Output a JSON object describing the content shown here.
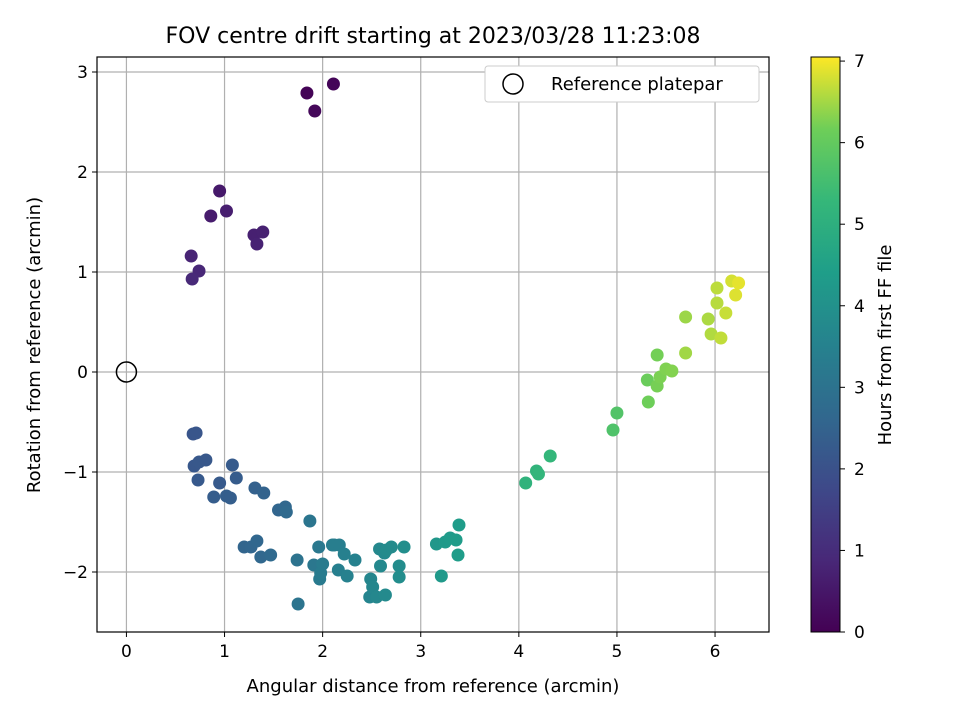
{
  "chart_data": {
    "type": "scatter",
    "title": "FOV centre drift starting at 2023/03/28 11:23:08",
    "xlabel": "Angular distance from reference (arcmin)",
    "ylabel": "Rotation from reference (arcmin)",
    "xlim": [
      -0.3,
      6.55
    ],
    "ylim": [
      -2.6,
      3.15
    ],
    "xticks": [
      0,
      1,
      2,
      3,
      4,
      5,
      6
    ],
    "yticks": [
      -2,
      -1,
      0,
      1,
      2,
      3
    ],
    "grid": true,
    "legend": {
      "position": "top-right",
      "entries": [
        "Reference platepar"
      ]
    },
    "reference": {
      "x": 0,
      "y": 0
    },
    "colorbar": {
      "label": "Hours from first FF file",
      "range": [
        0,
        7.05
      ],
      "ticks": [
        0,
        1,
        2,
        3,
        4,
        5,
        6,
        7
      ],
      "colormap": "viridis"
    },
    "points": [
      [
        1.84,
        2.79,
        0.05
      ],
      [
        2.11,
        2.88,
        0.1
      ],
      [
        1.92,
        2.61,
        0.15
      ],
      [
        0.95,
        1.81,
        0.55
      ],
      [
        0.86,
        1.56,
        0.6
      ],
      [
        1.02,
        1.61,
        0.65
      ],
      [
        1.3,
        1.37,
        0.7
      ],
      [
        1.39,
        1.4,
        0.72
      ],
      [
        1.33,
        1.28,
        0.75
      ],
      [
        0.66,
        1.16,
        0.8
      ],
      [
        0.74,
        1.01,
        0.85
      ],
      [
        0.67,
        0.93,
        0.9
      ],
      [
        0.68,
        -0.62,
        2.1
      ],
      [
        0.71,
        -0.61,
        2.12
      ],
      [
        0.69,
        -0.94,
        2.15
      ],
      [
        0.74,
        -0.9,
        2.18
      ],
      [
        0.81,
        -0.88,
        2.2
      ],
      [
        0.73,
        -1.08,
        2.22
      ],
      [
        0.95,
        -1.11,
        2.25
      ],
      [
        1.08,
        -0.93,
        2.27
      ],
      [
        1.12,
        -1.06,
        2.3
      ],
      [
        0.89,
        -1.25,
        2.32
      ],
      [
        1.02,
        -1.24,
        2.35
      ],
      [
        1.06,
        -1.26,
        2.37
      ],
      [
        1.31,
        -1.16,
        2.45
      ],
      [
        1.4,
        -1.21,
        2.5
      ],
      [
        1.55,
        -1.38,
        2.6
      ],
      [
        1.62,
        -1.35,
        2.65
      ],
      [
        1.63,
        -1.4,
        2.7
      ],
      [
        1.2,
        -1.75,
        2.55
      ],
      [
        1.27,
        -1.75,
        2.58
      ],
      [
        1.33,
        -1.69,
        2.62
      ],
      [
        1.37,
        -1.85,
        2.66
      ],
      [
        1.47,
        -1.83,
        2.7
      ],
      [
        1.74,
        -1.88,
        3.0
      ],
      [
        1.75,
        -2.32,
        3.05
      ],
      [
        1.87,
        -1.49,
        3.1
      ],
      [
        1.91,
        -1.93,
        3.15
      ],
      [
        1.96,
        -1.75,
        3.2
      ],
      [
        1.97,
        -2.07,
        3.25
      ],
      [
        1.98,
        -2.01,
        3.28
      ],
      [
        2.0,
        -1.92,
        3.3
      ],
      [
        2.1,
        -1.73,
        3.35
      ],
      [
        2.12,
        -1.73,
        3.38
      ],
      [
        2.17,
        -1.73,
        3.4
      ],
      [
        2.16,
        -1.98,
        3.42
      ],
      [
        2.22,
        -1.82,
        3.45
      ],
      [
        2.25,
        -2.04,
        3.48
      ],
      [
        2.33,
        -1.88,
        3.5
      ],
      [
        2.48,
        -2.25,
        3.6
      ],
      [
        2.49,
        -2.07,
        3.62
      ],
      [
        2.51,
        -2.15,
        3.65
      ],
      [
        2.55,
        -2.25,
        3.67
      ],
      [
        2.58,
        -1.77,
        3.7
      ],
      [
        2.59,
        -1.94,
        3.72
      ],
      [
        2.63,
        -1.81,
        3.75
      ],
      [
        2.64,
        -2.23,
        3.77
      ],
      [
        2.65,
        -1.78,
        3.8
      ],
      [
        2.7,
        -1.75,
        3.82
      ],
      [
        2.78,
        -1.94,
        3.85
      ],
      [
        2.78,
        -2.05,
        3.87
      ],
      [
        2.83,
        -1.75,
        3.9
      ],
      [
        3.16,
        -1.72,
        4.2
      ],
      [
        3.21,
        -2.04,
        4.25
      ],
      [
        3.25,
        -1.7,
        4.28
      ],
      [
        3.3,
        -1.66,
        4.3
      ],
      [
        3.36,
        -1.68,
        4.33
      ],
      [
        3.39,
        -1.53,
        4.35
      ],
      [
        3.38,
        -1.83,
        4.38
      ],
      [
        4.07,
        -1.11,
        5.1
      ],
      [
        4.18,
        -0.99,
        5.15
      ],
      [
        4.2,
        -1.02,
        5.2
      ],
      [
        4.32,
        -0.84,
        5.25
      ],
      [
        4.96,
        -0.58,
        5.7
      ],
      [
        5.0,
        -0.41,
        5.75
      ],
      [
        5.31,
        -0.08,
        6.1
      ],
      [
        5.32,
        -0.3,
        6.15
      ],
      [
        5.41,
        0.17,
        6.2
      ],
      [
        5.41,
        -0.14,
        6.22
      ],
      [
        5.44,
        -0.05,
        6.25
      ],
      [
        5.5,
        0.03,
        6.28
      ],
      [
        5.56,
        0.01,
        6.3
      ],
      [
        5.7,
        0.55,
        6.45
      ],
      [
        5.7,
        0.19,
        6.48
      ],
      [
        5.93,
        0.53,
        6.55
      ],
      [
        5.96,
        0.38,
        6.58
      ],
      [
        6.02,
        0.69,
        6.62
      ],
      [
        6.02,
        0.84,
        6.65
      ],
      [
        6.06,
        0.34,
        6.68
      ],
      [
        6.11,
        0.59,
        6.72
      ],
      [
        6.17,
        0.91,
        6.8
      ],
      [
        6.21,
        0.77,
        6.85
      ],
      [
        6.24,
        0.89,
        6.9
      ]
    ]
  }
}
